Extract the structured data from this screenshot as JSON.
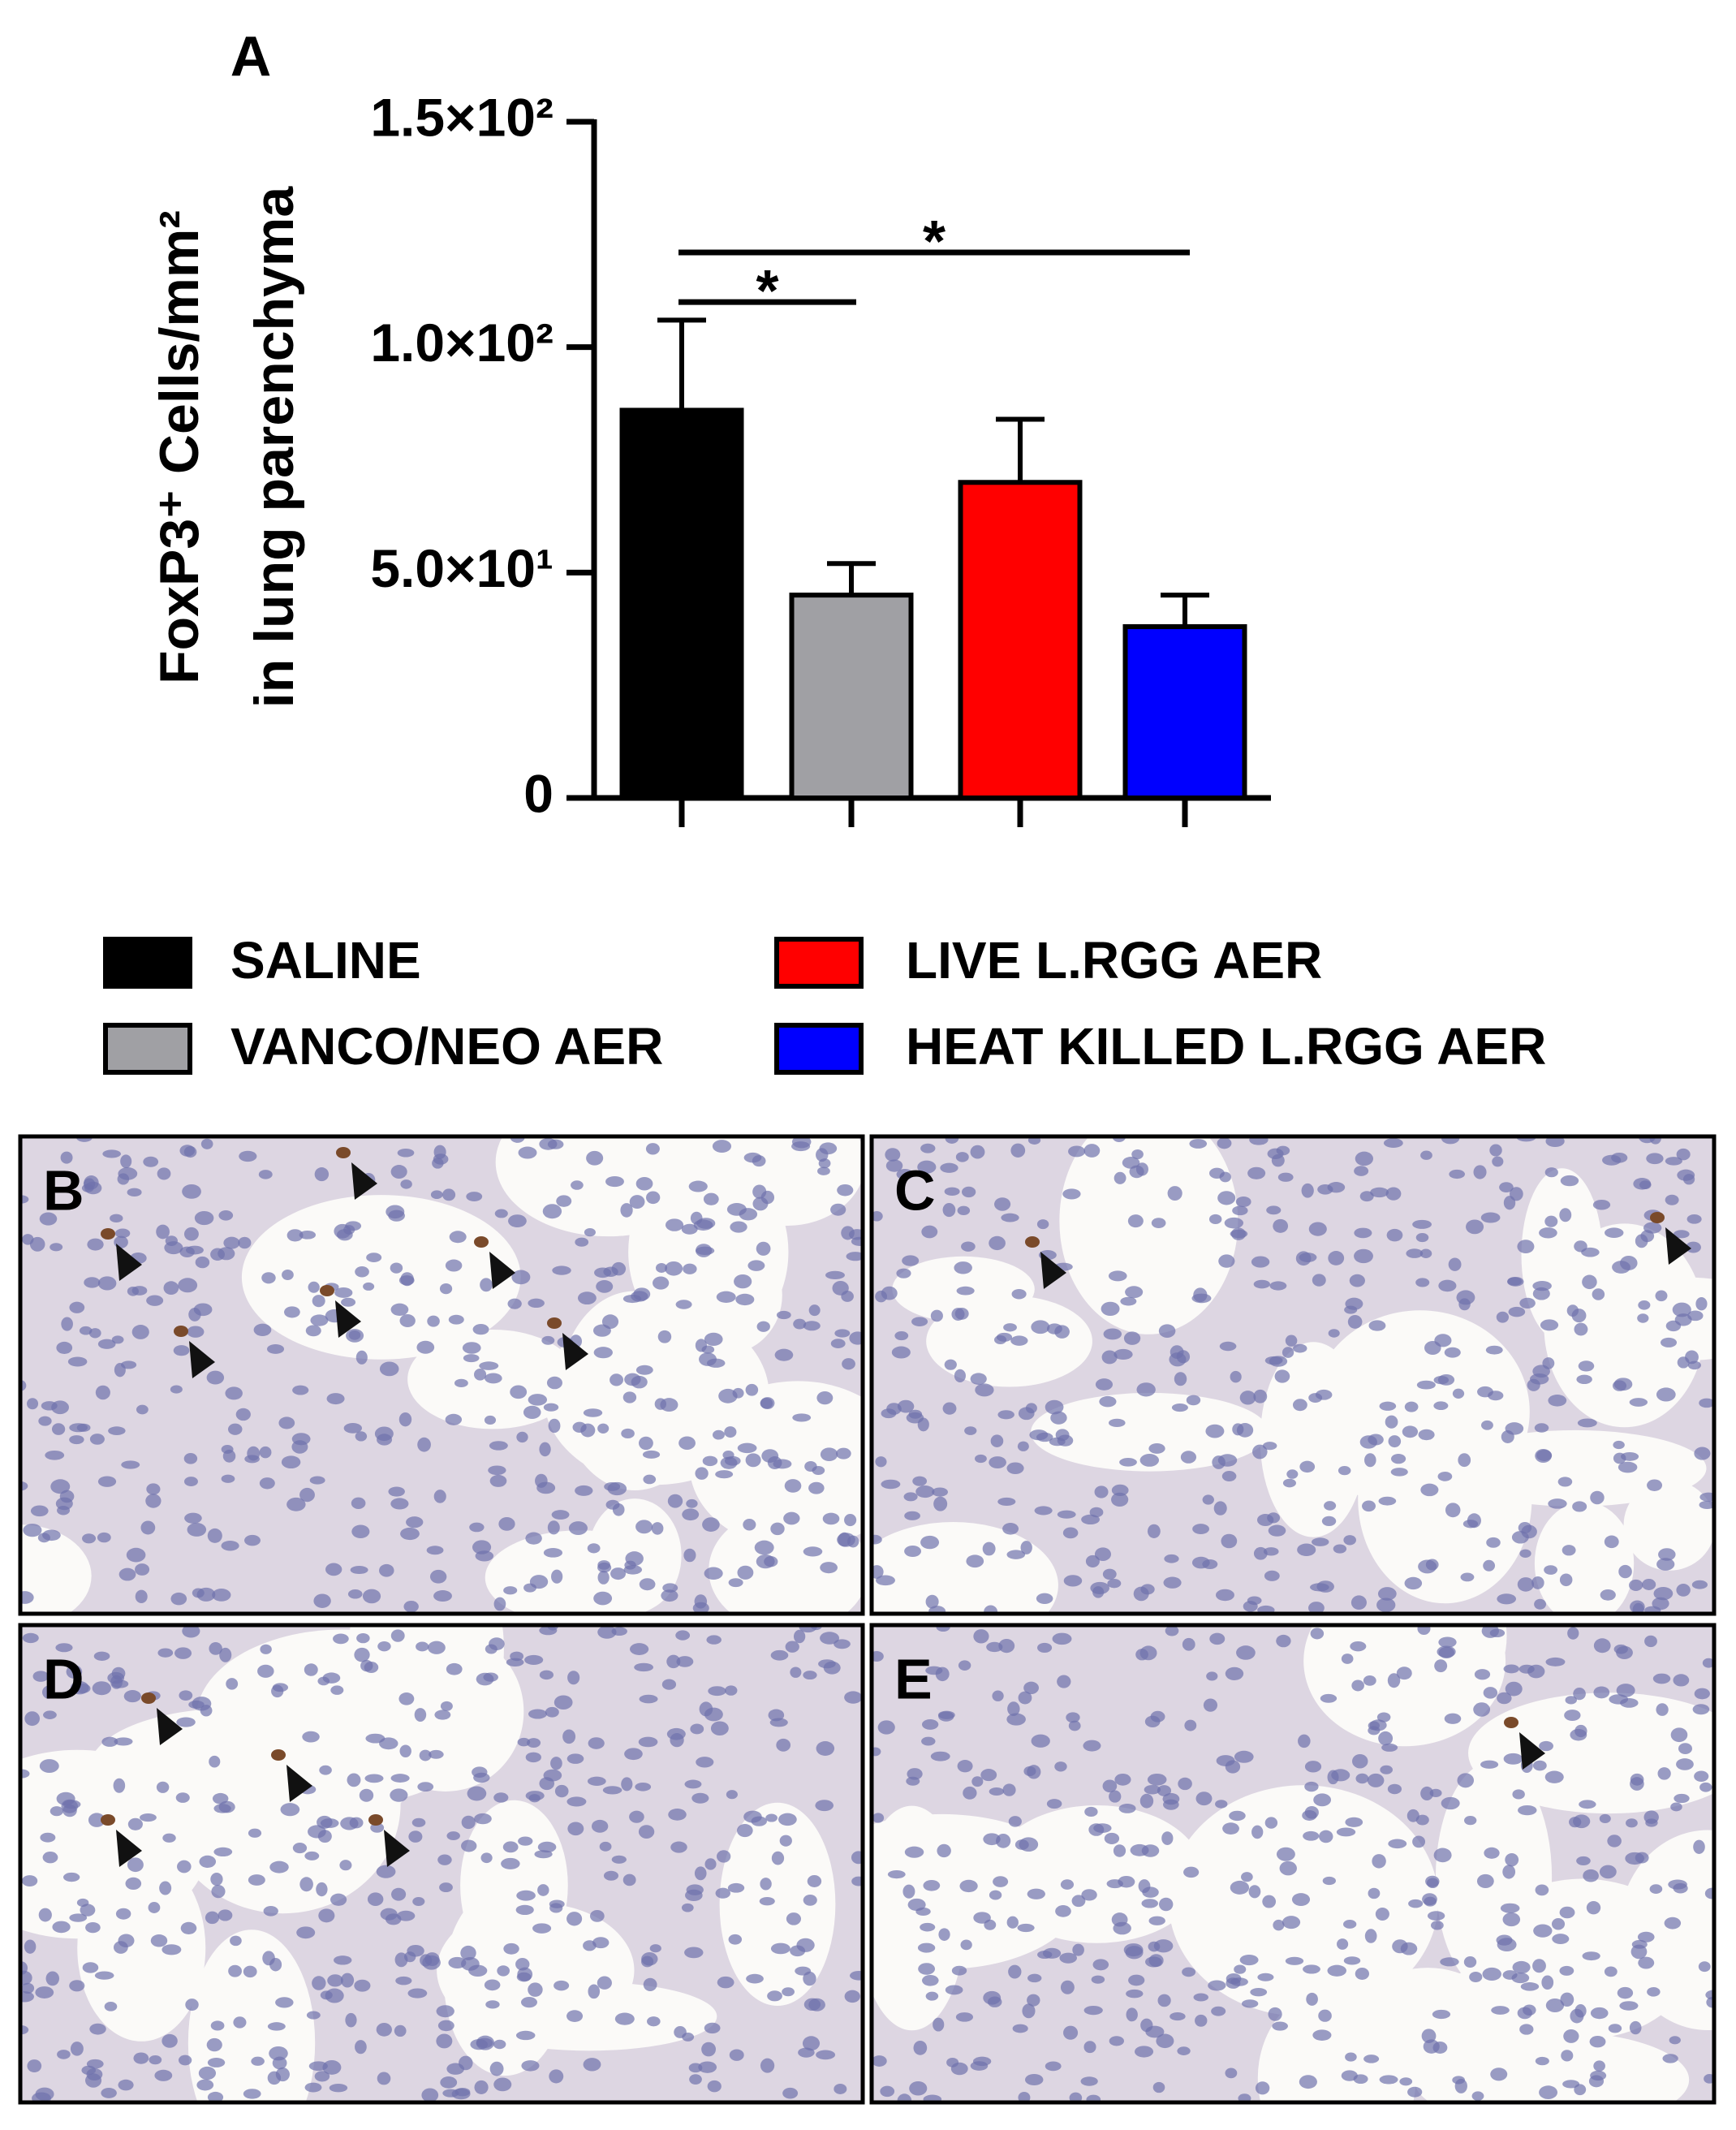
{
  "chart_data": {
    "type": "bar",
    "panel_label": "A",
    "ylabel": [
      "FoxP3⁺ Cells/mm²",
      "in lung parenchyma"
    ],
    "categories": [
      "SALINE",
      "VANCO/NEO AER",
      "LIVE L.RGG AER",
      "HEAT KILLED L.RGG AER"
    ],
    "values": [
      86,
      45,
      70,
      38
    ],
    "errors": [
      20,
      7,
      14,
      7
    ],
    "colors": [
      "#000000",
      "#a0a0a4",
      "#ff0000",
      "#0000ff"
    ],
    "ylim": [
      0,
      150
    ],
    "yticks": [
      0,
      {
        "value": 50,
        "label": "5.0×10¹"
      },
      {
        "value": 100,
        "label": "1.0×10²"
      },
      {
        "value": 150,
        "label": "1.5×10²"
      }
    ],
    "annotations": [
      {
        "text": "*",
        "from": 0,
        "to": 3,
        "y": 121
      },
      {
        "text": "*",
        "from": 0,
        "to": 1,
        "y": 110
      }
    ]
  },
  "panels": [
    {
      "label": "B"
    },
    {
      "label": "C"
    },
    {
      "label": "D"
    },
    {
      "label": "E"
    }
  ]
}
